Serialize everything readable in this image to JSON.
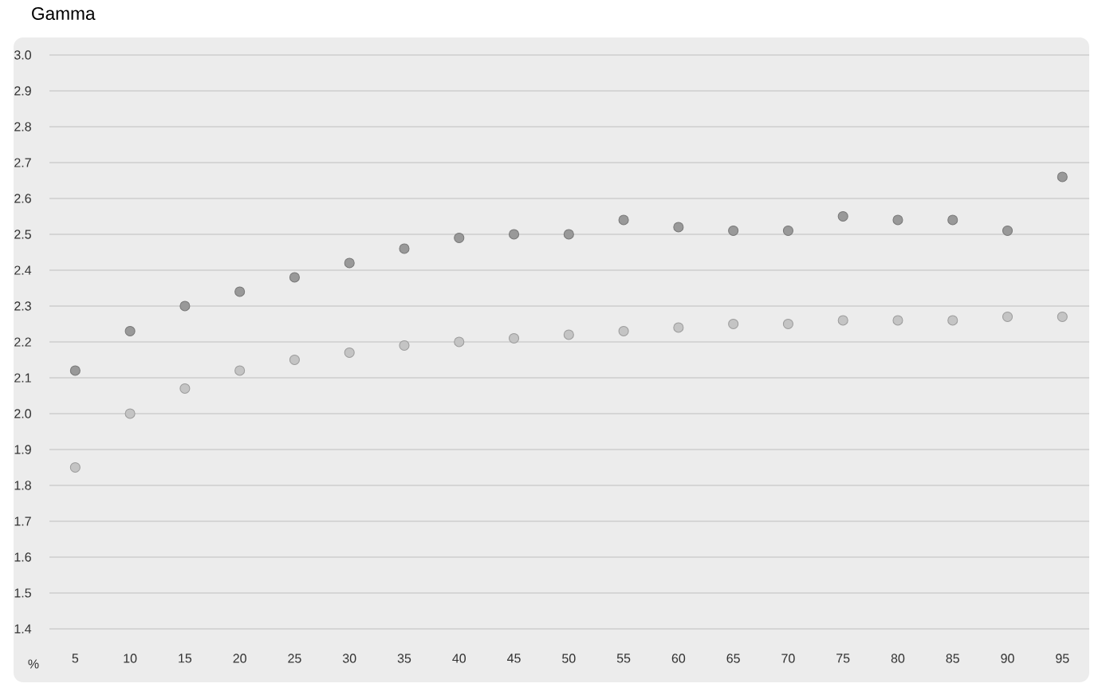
{
  "chart_data": {
    "type": "scatter",
    "title": "Gamma",
    "xlabel": "%",
    "categories": [
      "5",
      "10",
      "15",
      "20",
      "25",
      "30",
      "35",
      "40",
      "45",
      "50",
      "55",
      "60",
      "65",
      "70",
      "75",
      "80",
      "85",
      "90",
      "95"
    ],
    "series": [
      {
        "color": "#999999",
        "values": [
          2.12,
          2.23,
          2.3,
          2.34,
          2.38,
          2.42,
          2.46,
          2.49,
          2.5,
          2.5,
          2.54,
          2.52,
          2.51,
          2.51,
          2.55,
          2.54,
          2.54,
          2.51,
          2.66
        ]
      },
      {
        "color": "#c4c4c4",
        "values": [
          1.85,
          2.0,
          2.07,
          2.12,
          2.15,
          2.17,
          2.19,
          2.2,
          2.21,
          2.22,
          2.23,
          2.24,
          2.25,
          2.25,
          2.26,
          2.26,
          2.26,
          2.27,
          2.27
        ]
      }
    ],
    "ylim": [
      1.4,
      3.0
    ],
    "yticks": [
      1.4,
      1.5,
      1.6,
      1.7,
      1.8,
      1.9,
      {
        "value": 2.0,
        "label": "2.0"
      },
      2.1,
      2.2,
      2.3,
      2.4,
      2.5,
      2.6,
      2.7,
      2.8,
      2.9,
      {
        "value": 3.0,
        "label": "3.0"
      }
    ],
    "grid": "y",
    "marker": "circle"
  }
}
